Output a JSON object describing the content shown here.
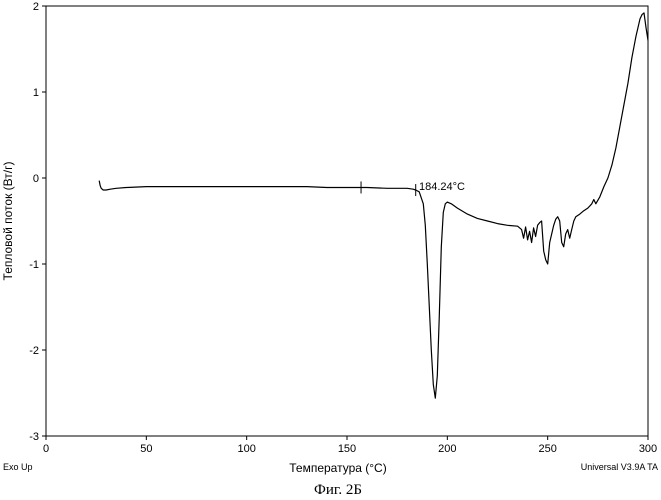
{
  "chart_data": {
    "type": "line",
    "title": "",
    "xlabel": "Температура  (°C)",
    "ylabel": "Тепловой поток (Вт/г)",
    "xlim": [
      0,
      300
    ],
    "ylim": [
      -3,
      2
    ],
    "x_ticks": [
      0,
      50,
      100,
      150,
      200,
      250,
      300
    ],
    "y_ticks": [
      -3,
      -2,
      -1,
      0,
      1,
      2
    ],
    "grid": false,
    "series": [
      {
        "x": [
          26.5,
          27,
          27.5,
          28.5,
          30,
          32,
          35,
          40,
          50,
          60,
          70,
          80,
          90,
          100,
          110,
          120,
          130,
          140,
          150,
          157,
          160,
          170,
          175,
          180,
          183,
          184.24,
          186,
          188,
          189,
          190,
          191,
          192,
          193,
          194,
          195,
          196,
          197,
          198,
          199,
          200,
          202,
          205,
          210,
          215,
          220,
          225,
          230,
          235,
          237,
          238,
          239,
          240,
          241,
          242,
          243,
          244,
          245,
          246,
          247,
          248,
          249,
          250,
          251,
          252,
          253,
          254,
          255,
          256,
          257,
          258,
          259,
          260,
          261,
          262,
          263,
          264,
          266,
          268,
          270,
          272,
          273,
          274,
          276,
          278,
          280,
          282,
          284,
          286,
          288,
          290,
          292,
          294,
          295,
          296,
          297,
          298,
          299,
          300
        ],
        "y": [
          -0.03,
          -0.09,
          -0.12,
          -0.14,
          -0.14,
          -0.13,
          -0.12,
          -0.11,
          -0.1,
          -0.1,
          -0.1,
          -0.1,
          -0.1,
          -0.1,
          -0.1,
          -0.1,
          -0.1,
          -0.11,
          -0.11,
          -0.11,
          -0.11,
          -0.12,
          -0.12,
          -0.12,
          -0.13,
          -0.14,
          -0.16,
          -0.3,
          -0.55,
          -1.0,
          -1.5,
          -2.0,
          -2.4,
          -2.56,
          -2.3,
          -1.6,
          -0.8,
          -0.4,
          -0.3,
          -0.28,
          -0.3,
          -0.35,
          -0.42,
          -0.47,
          -0.5,
          -0.53,
          -0.55,
          -0.56,
          -0.6,
          -0.7,
          -0.57,
          -0.72,
          -0.62,
          -0.75,
          -0.58,
          -0.68,
          -0.55,
          -0.52,
          -0.5,
          -0.85,
          -0.95,
          -1.0,
          -0.75,
          -0.65,
          -0.55,
          -0.48,
          -0.45,
          -0.5,
          -0.75,
          -0.8,
          -0.65,
          -0.6,
          -0.7,
          -0.6,
          -0.5,
          -0.45,
          -0.42,
          -0.38,
          -0.35,
          -0.3,
          -0.25,
          -0.3,
          -0.22,
          -0.1,
          0.0,
          0.15,
          0.35,
          0.6,
          0.85,
          1.1,
          1.4,
          1.65,
          1.75,
          1.85,
          1.9,
          1.92,
          1.75,
          1.6
        ]
      }
    ],
    "annotations": [
      {
        "text": "184.24°C",
        "x": 184.24,
        "y": -0.13
      }
    ],
    "markers_x": [
      157,
      184.24
    ],
    "corner_left": "Exo Up",
    "corner_right": "Universal V3.9A TA",
    "caption": "Фиг. 2Б"
  }
}
